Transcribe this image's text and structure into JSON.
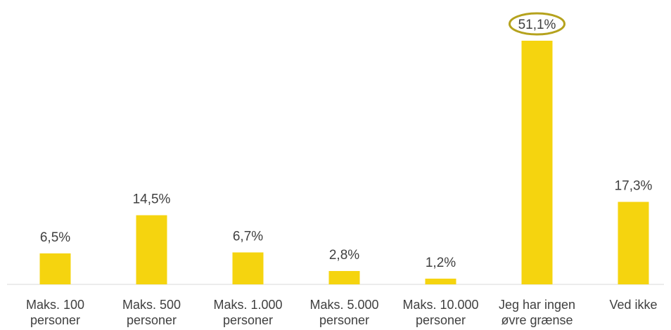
{
  "chart_data": {
    "type": "bar",
    "categories": [
      [
        "Maks. 100",
        "personer"
      ],
      [
        "Maks. 500",
        "personer"
      ],
      [
        "Maks. 1.000",
        "personer"
      ],
      [
        "Maks. 5.000",
        "personer"
      ],
      [
        "Maks. 10.000",
        "personer"
      ],
      [
        "Jeg har ingen",
        "øvre grænse"
      ],
      [
        "Ved ikke"
      ]
    ],
    "values": [
      6.5,
      14.5,
      6.7,
      2.8,
      1.2,
      51.1,
      17.3
    ],
    "value_labels": [
      "6,5%",
      "14,5%",
      "6,7%",
      "2,8%",
      "1,2%",
      "51,1%",
      "17,3%"
    ],
    "highlighted_index": 5,
    "ylim": [
      0,
      51.1
    ],
    "grid": false,
    "colors": {
      "bar": "#F5D40F",
      "highlight_ring": "#B5A21D",
      "axis": "#D9D9D9",
      "text": "#404040"
    }
  }
}
